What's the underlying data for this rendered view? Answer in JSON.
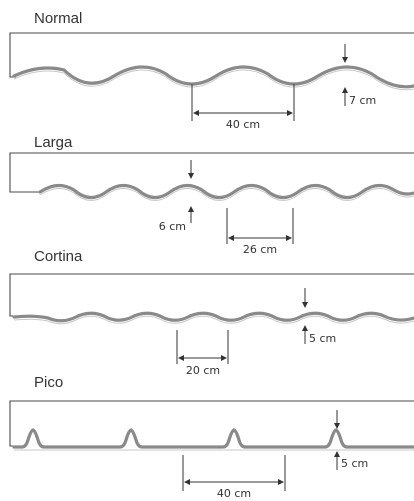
{
  "profiles": [
    {
      "name": "Normal",
      "width_label": "40 cm",
      "height_label": "7 cm"
    },
    {
      "name": "Larga",
      "width_label": "26 cm",
      "height_label": "6 cm"
    },
    {
      "name": "Cortina",
      "width_label": "20 cm",
      "height_label": "5 cm"
    },
    {
      "name": "Pico",
      "width_label": "40 cm",
      "height_label": "5 cm"
    }
  ]
}
